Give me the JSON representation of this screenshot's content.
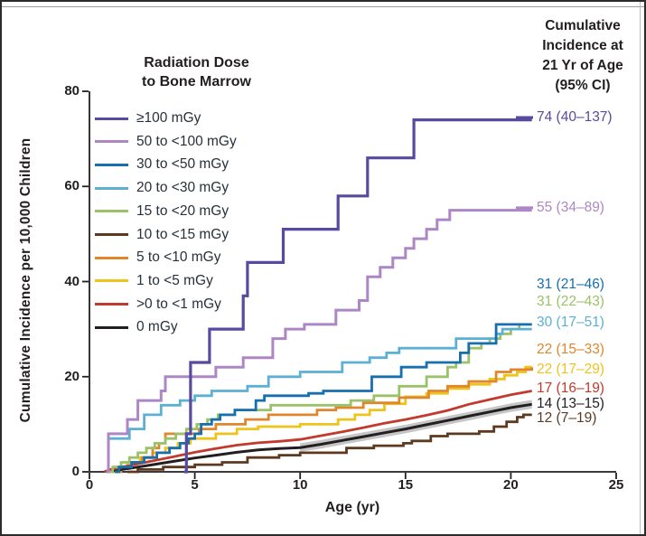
{
  "figure": {
    "y_axis": {
      "label": "Cumulative Incidence per 10,000 Children",
      "ticks": [
        0,
        20,
        40,
        60,
        80
      ]
    },
    "x_axis": {
      "label": "Age (yr)",
      "ticks": [
        0,
        5,
        10,
        15,
        20,
        25
      ]
    },
    "legend_title": "Radiation Dose\nto Bone Marrow",
    "right_header": "Cumulative\nIncidence at\n21 Yr of Age\n(95% CI)",
    "text_color": "#231f20",
    "axis_color": "#231f20"
  },
  "chart_data": {
    "type": "line",
    "step": true,
    "xlabel": "Age (yr)",
    "ylabel": "Cumulative Incidence per 10,000 Children",
    "xlim": [
      0,
      25
    ],
    "ylim": [
      0,
      80
    ],
    "grid": false,
    "legend_position": "upper-left",
    "series": [
      {
        "id": "ge100",
        "name": "≥100 mGy",
        "color": "#584a9e",
        "width": 3.2,
        "smooth": false,
        "annotation": "74 (40–137)",
        "label_value": 74.5,
        "stub": true,
        "points": [
          [
            4.5,
            0
          ],
          [
            4.6,
            8
          ],
          [
            4.8,
            23
          ],
          [
            5.7,
            30
          ],
          [
            7.3,
            37
          ],
          [
            7.5,
            44
          ],
          [
            9.2,
            51
          ],
          [
            11.8,
            58
          ],
          [
            13.2,
            66
          ],
          [
            15.4,
            74
          ],
          [
            21,
            74
          ]
        ]
      },
      {
        "id": "p50to100",
        "name": "50 to <100 mGy",
        "color": "#ad87c5",
        "width": 3,
        "smooth": false,
        "annotation": "55 (34–89)",
        "label_value": 55.5,
        "stub": true,
        "points": [
          [
            0.8,
            0
          ],
          [
            0.9,
            8
          ],
          [
            1.8,
            11
          ],
          [
            2.3,
            15
          ],
          [
            3.4,
            17
          ],
          [
            3.6,
            20
          ],
          [
            6.0,
            22
          ],
          [
            7.3,
            24
          ],
          [
            8.7,
            28
          ],
          [
            9.3,
            30
          ],
          [
            10.2,
            31
          ],
          [
            11.7,
            34
          ],
          [
            12.8,
            36
          ],
          [
            13.2,
            41
          ],
          [
            13.8,
            43
          ],
          [
            14.4,
            45
          ],
          [
            15.0,
            47
          ],
          [
            15.4,
            49
          ],
          [
            16.0,
            51
          ],
          [
            16.5,
            53
          ],
          [
            17.1,
            55
          ],
          [
            21,
            55
          ]
        ]
      },
      {
        "id": "b30to50",
        "name": "30 to <50 mGy",
        "color": "#176fad",
        "width": 2.8,
        "smooth": false,
        "annotation": "31 (21–46)",
        "label_value": 39.3,
        "stub": false,
        "points": [
          [
            1.2,
            0
          ],
          [
            1.4,
            1
          ],
          [
            2.0,
            2
          ],
          [
            2.6,
            3
          ],
          [
            3.2,
            4
          ],
          [
            3.8,
            5
          ],
          [
            4.3,
            6
          ],
          [
            4.7,
            7
          ],
          [
            5.0,
            8
          ],
          [
            5.3,
            10
          ],
          [
            5.8,
            11
          ],
          [
            6.2,
            12
          ],
          [
            6.9,
            13
          ],
          [
            7.9,
            15
          ],
          [
            8.3,
            16
          ],
          [
            10.4,
            16.5
          ],
          [
            11.1,
            17
          ],
          [
            13.4,
            20
          ],
          [
            14.8,
            22
          ],
          [
            16.0,
            23
          ],
          [
            17.6,
            25
          ],
          [
            18.0,
            27
          ],
          [
            19.3,
            31
          ],
          [
            21,
            31
          ]
        ]
      },
      {
        "id": "b20to30",
        "name": "20 to <30 mGy",
        "color": "#5cb0d4",
        "width": 2.8,
        "smooth": false,
        "annotation": "30 (17–51)",
        "label_value": 31.4,
        "stub": false,
        "points": [
          [
            0.8,
            0
          ],
          [
            0.9,
            7
          ],
          [
            1.9,
            9
          ],
          [
            2.6,
            12
          ],
          [
            3.4,
            14
          ],
          [
            4.3,
            15
          ],
          [
            5.0,
            16
          ],
          [
            5.8,
            17
          ],
          [
            7.5,
            18
          ],
          [
            8.5,
            20
          ],
          [
            10.0,
            21
          ],
          [
            12.0,
            23
          ],
          [
            13.3,
            24
          ],
          [
            14.1,
            25
          ],
          [
            14.7,
            26
          ],
          [
            17.4,
            28
          ],
          [
            19.3,
            29
          ],
          [
            19.6,
            30
          ],
          [
            21,
            30
          ]
        ]
      },
      {
        "id": "g15to20",
        "name": "15 to <20 mGy",
        "color": "#9bc268",
        "width": 2.8,
        "smooth": false,
        "annotation": "31 (22–43)",
        "label_value": 35.7,
        "stub": false,
        "points": [
          [
            0.9,
            0
          ],
          [
            1.1,
            1
          ],
          [
            1.5,
            2
          ],
          [
            1.9,
            3
          ],
          [
            2.3,
            4
          ],
          [
            2.7,
            5
          ],
          [
            3.1,
            6
          ],
          [
            3.6,
            7
          ],
          [
            4.1,
            8
          ],
          [
            4.6,
            9
          ],
          [
            5.1,
            10
          ],
          [
            5.6,
            11
          ],
          [
            6.1,
            12
          ],
          [
            6.9,
            13
          ],
          [
            8.6,
            14
          ],
          [
            12.4,
            15
          ],
          [
            13.5,
            16
          ],
          [
            14.7,
            18
          ],
          [
            16.0,
            20
          ],
          [
            17.0,
            22
          ],
          [
            17.4,
            23
          ],
          [
            18.0,
            26
          ],
          [
            18.6,
            27
          ],
          [
            19.0,
            28
          ],
          [
            19.5,
            29
          ],
          [
            20.0,
            30
          ],
          [
            20.4,
            31
          ],
          [
            21,
            31
          ]
        ]
      },
      {
        "id": "br10to15",
        "name": "10 to <15 mGy",
        "color": "#5d3a1f",
        "width": 2.8,
        "smooth": false,
        "annotation": "12 (7–19)",
        "label_value": 11.2,
        "stub": false,
        "points": [
          [
            1.8,
            0
          ],
          [
            2.3,
            0.5
          ],
          [
            3.5,
            1
          ],
          [
            5.0,
            1.5
          ],
          [
            6.3,
            2
          ],
          [
            7.5,
            3
          ],
          [
            9.0,
            3.5
          ],
          [
            10.0,
            4
          ],
          [
            12.2,
            5
          ],
          [
            13.5,
            5.5
          ],
          [
            14.9,
            6
          ],
          [
            15.3,
            6.5
          ],
          [
            16.2,
            7.5
          ],
          [
            17.0,
            8
          ],
          [
            18.5,
            8.5
          ],
          [
            19.2,
            9.5
          ],
          [
            19.8,
            10.5
          ],
          [
            20.3,
            11.5
          ],
          [
            20.6,
            12
          ],
          [
            21,
            12
          ]
        ]
      },
      {
        "id": "o5to10",
        "name": "5 to <10 mGy",
        "color": "#e0862c",
        "width": 2.8,
        "smooth": false,
        "annotation": "22 (15–33)",
        "label_value": 25.7,
        "stub": false,
        "points": [
          [
            1.2,
            0
          ],
          [
            1.5,
            1
          ],
          [
            2.0,
            2
          ],
          [
            2.5,
            3
          ],
          [
            3.0,
            5
          ],
          [
            3.3,
            6
          ],
          [
            3.6,
            8
          ],
          [
            5.2,
            9
          ],
          [
            6.0,
            10
          ],
          [
            7.4,
            11
          ],
          [
            8.5,
            12
          ],
          [
            10.8,
            13
          ],
          [
            11.7,
            13.5
          ],
          [
            13.0,
            14.5
          ],
          [
            14.7,
            15.6
          ],
          [
            16.1,
            17
          ],
          [
            17.0,
            18
          ],
          [
            18.0,
            19
          ],
          [
            19.3,
            21
          ],
          [
            20.0,
            21.5
          ],
          [
            21,
            22
          ]
        ]
      },
      {
        "id": "y1to5",
        "name": "1 to <5 mGy",
        "color": "#eec41c",
        "width": 2.8,
        "smooth": false,
        "annotation": "22 (17–29)",
        "label_value": 21.5,
        "stub": false,
        "points": [
          [
            1.0,
            0
          ],
          [
            1.2,
            1
          ],
          [
            1.8,
            2
          ],
          [
            2.4,
            3
          ],
          [
            3.0,
            4
          ],
          [
            3.6,
            5
          ],
          [
            4.2,
            6
          ],
          [
            4.8,
            7
          ],
          [
            6.0,
            8
          ],
          [
            7.0,
            9
          ],
          [
            8.0,
            9.5
          ],
          [
            10.0,
            10
          ],
          [
            11.8,
            11
          ],
          [
            12.6,
            12
          ],
          [
            13.3,
            13
          ],
          [
            14.0,
            14.3
          ],
          [
            15.0,
            15.8
          ],
          [
            16.0,
            16.5
          ],
          [
            17.0,
            17.5
          ],
          [
            18.0,
            18.4
          ],
          [
            19.0,
            19.5
          ],
          [
            19.7,
            20.3
          ],
          [
            20.3,
            21
          ],
          [
            20.7,
            22
          ],
          [
            21,
            22
          ]
        ]
      },
      {
        "id": "r0to1",
        "name": ">0 to <1 mGy",
        "color": "#c23a2c",
        "width": 2.8,
        "smooth": true,
        "annotation": "17 (16–19)",
        "label_value": 17.5,
        "stub": false,
        "points": [
          [
            0.7,
            0
          ],
          [
            1.0,
            0.5
          ],
          [
            2.0,
            1.4
          ],
          [
            3.0,
            2.3
          ],
          [
            4.0,
            3.2
          ],
          [
            5.0,
            4.1
          ],
          [
            6.0,
            4.9
          ],
          [
            7.0,
            5.6
          ],
          [
            8.0,
            6.1
          ],
          [
            9.0,
            6.4
          ],
          [
            10.0,
            6.8
          ],
          [
            11.0,
            7.6
          ],
          [
            12.0,
            8.4
          ],
          [
            13.0,
            9.3
          ],
          [
            14.0,
            10.2
          ],
          [
            15.0,
            11.0
          ],
          [
            16.0,
            11.9
          ],
          [
            17.0,
            12.9
          ],
          [
            18.0,
            14.2
          ],
          [
            19.0,
            15.2
          ],
          [
            20.0,
            16.2
          ],
          [
            21,
            17
          ]
        ]
      },
      {
        "id": "zero",
        "name": "0 mGy",
        "color": "#231f20",
        "width": 3,
        "smooth": true,
        "annotation": "14 (13–15)",
        "label_value": 14.3,
        "stub": false,
        "points": [
          [
            0.8,
            0
          ],
          [
            2.0,
            0.8
          ],
          [
            3.0,
            1.5
          ],
          [
            4.0,
            2.2
          ],
          [
            5.0,
            2.9
          ],
          [
            6.0,
            3.5
          ],
          [
            7.0,
            4.1
          ],
          [
            8.0,
            4.6
          ],
          [
            9.0,
            4.9
          ],
          [
            10.0,
            5.1
          ],
          [
            11.0,
            5.8
          ],
          [
            12.0,
            6.6
          ],
          [
            13.0,
            7.4
          ],
          [
            14.0,
            8.2
          ],
          [
            15.0,
            9.0
          ],
          [
            16.0,
            9.9
          ],
          [
            17.0,
            10.8
          ],
          [
            18.0,
            11.7
          ],
          [
            19.0,
            12.6
          ],
          [
            20.0,
            13.5
          ],
          [
            21,
            14.2
          ]
        ]
      }
    ],
    "ci_band": {
      "series": "zero",
      "delta": 0.9,
      "from_age": 10,
      "color": "#c6c6c6"
    }
  }
}
